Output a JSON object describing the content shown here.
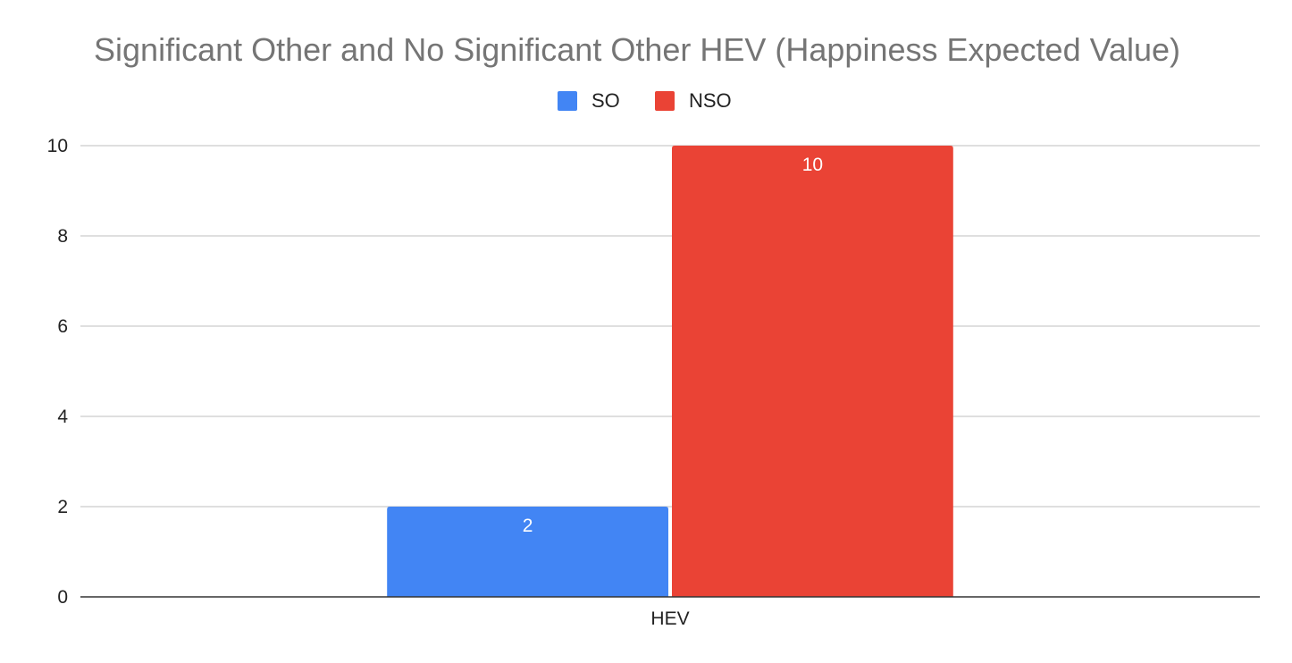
{
  "chart_data": {
    "type": "bar",
    "title": "Significant Other and No Significant Other HEV (Happiness Expected Value)",
    "xlabel": "",
    "ylabel": "",
    "categories": [
      "HEV"
    ],
    "series": [
      {
        "name": "SO",
        "values": [
          2
        ],
        "color": "#4285F4"
      },
      {
        "name": "NSO",
        "values": [
          10
        ],
        "color": "#EA4335"
      }
    ],
    "ylim": [
      0,
      10
    ],
    "yticks": [
      0,
      2,
      4,
      6,
      8,
      10
    ],
    "grid": true,
    "legend_position": "top",
    "data_labels": true
  }
}
